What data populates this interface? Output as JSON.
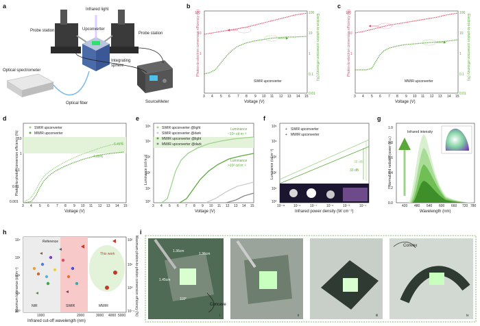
{
  "panel_labels": [
    "a",
    "b",
    "c",
    "d",
    "e",
    "f",
    "g",
    "h",
    "i"
  ],
  "a": {
    "labels": {
      "infrared": "Infrared light",
      "upconverter": "Upconverter",
      "probe_left": "Probe station",
      "probe_right": "Probe station",
      "sphere": "Integrating sphere",
      "spectrometer": "Optical spectrometer",
      "fiber": "Optical fiber",
      "sourcemeter": "SourceMeter"
    }
  },
  "b": {
    "y1_label": "Photon-to-electron conversion efficiency (%)",
    "y2_label": "Electron-to-photon conversion efficiency (%)",
    "x_label": "Voltage (V)",
    "note": "SWIR upconverter",
    "x_ticks": [
      "3",
      "4",
      "5",
      "6",
      "7",
      "8",
      "9",
      "10",
      "11",
      "12",
      "13",
      "14",
      "15"
    ],
    "y1_ticks": [
      "100",
      "10",
      "1"
    ],
    "y2_ticks": [
      "100",
      "10",
      "1",
      "0.1",
      "0.01"
    ]
  },
  "c": {
    "y1_label": "Photon-to-electron conversion efficiency (%)",
    "y2_label": "Electron-to-photon conversion efficiency (%)",
    "x_label": "Voltage (V)",
    "note": "MWIR upconverter",
    "x_ticks": [
      "3",
      "4",
      "5",
      "6",
      "7",
      "8",
      "9",
      "10",
      "11",
      "12",
      "13",
      "14",
      "15"
    ],
    "y1_ticks": [
      "100",
      "10",
      "1"
    ],
    "y2_ticks": [
      "100",
      "10",
      "1",
      "0.1",
      "0.01"
    ]
  },
  "d": {
    "y_label": "Photon-to-photon conversion efficiency (%)",
    "x_label": "Voltage (V)",
    "legend": [
      "SWIR upconverter",
      "MWIR upconverter"
    ],
    "annotations": [
      "6.41%",
      "4.06%"
    ],
    "x_ticks": [
      "3",
      "4",
      "5",
      "6",
      "7",
      "8",
      "9",
      "10",
      "11",
      "12",
      "13",
      "14",
      "15"
    ],
    "y_ticks": [
      "10",
      "1",
      "0.1",
      "0.01",
      "0.001"
    ]
  },
  "e": {
    "y_label": "Luminance (cd m⁻²)",
    "x_label": "Voltage (V)",
    "legend": [
      "SWIR upconverter @light",
      "SWIR upconverter @dark",
      "MWIR upconverter @light",
      "MWIR upconverter @dark"
    ],
    "ann1": [
      "Luminance",
      "~10⁴ cd m⁻²"
    ],
    "ann2": [
      "Luminance",
      ">10³ cd m⁻²"
    ],
    "x_ticks": [
      "3",
      "4",
      "5",
      "6",
      "7",
      "8",
      "9",
      "10",
      "11",
      "12",
      "13",
      "14",
      "15"
    ],
    "y_ticks": [
      "10⁵",
      "10⁴",
      "10³",
      "10²",
      "10¹",
      "10⁰"
    ]
  },
  "f": {
    "y_label": "Luminance (cd m⁻²)",
    "x_label": "Infrared power density (W cm⁻²)",
    "legend": [
      "SWIR upconverter",
      "MWIR upconverter"
    ],
    "annotations": [
      "38 dB",
      "33 dB"
    ],
    "x_ticks": [
      "10⁻¹¹",
      "10⁻⁹",
      "10⁻⁷",
      "10⁻⁵",
      "10⁻³",
      "10⁻¹"
    ],
    "y_ticks": [
      "10⁵",
      "10⁴",
      "10³",
      "10²",
      "10¹",
      "10⁰"
    ]
  },
  "g": {
    "y_label": "Normalized radiated power (a.u.)",
    "x_label": "Wavelength (nm)",
    "arrow_label": "Infrared intensity",
    "x_ticks": [
      "420",
      "480",
      "540",
      "600",
      "660",
      "720",
      "780"
    ],
    "y_ticks": [
      "0.0",
      "0.2",
      "0.4",
      "0.6",
      "0.8",
      "1.0"
    ]
  },
  "h": {
    "y1_label": "Maximum luminance (cd m⁻²)",
    "y2_label": "Maximum photon-to-photon conversion efficiency (%)",
    "x_label": "Infrared cut-off wavelength (nm)",
    "reference": "Reference",
    "this_work": "This work",
    "regions": [
      "NIR",
      "SWIR",
      "MWIR"
    ],
    "x_ticks": [
      "1000",
      "2000",
      "3000",
      "4000",
      "5000"
    ],
    "y1_ticks": [
      "10⁴",
      "10³",
      "10²",
      "10¹",
      "10⁰"
    ],
    "y2_ticks": [
      "10²",
      "10¹",
      "10⁰",
      "10⁻¹"
    ]
  },
  "i": {
    "dims": [
      "1.36cm",
      "1.36cm",
      "1.45cm"
    ],
    "angle": "118°",
    "concave": "Concave",
    "convex": "Convex",
    "sub": [
      "i",
      "ii",
      "iii",
      "iv"
    ]
  },
  "colors": {
    "pink": "#d94f6a",
    "green": "#5ba83a",
    "lightgreen": "#9ed28a",
    "red": "#c0392b"
  }
}
